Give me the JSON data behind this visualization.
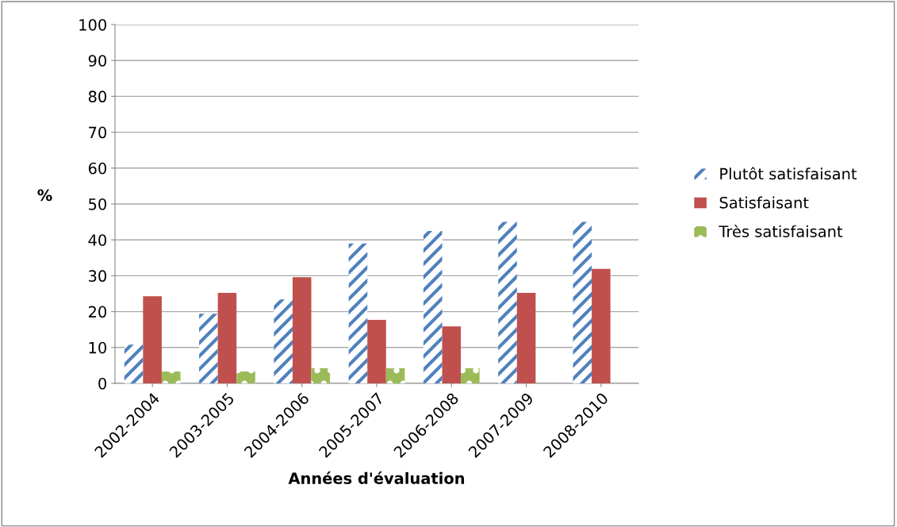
{
  "chart_data": {
    "type": "bar",
    "xlabel": "Années d'évaluation",
    "ylabel": "%",
    "categories": [
      "2002-2004",
      "2003-2005",
      "2004-2006",
      "2005-2007",
      "2006-2008",
      "2007-2009",
      "2008-2010"
    ],
    "series": [
      {
        "name": "Plutôt satisfaisant",
        "color": "#4f81bd",
        "values": [
          10.8,
          19.4,
          23.4,
          39,
          42.5,
          45,
          45
        ]
      },
      {
        "name": "Satisfaisant",
        "color": "#c0504d",
        "values": [
          24.3,
          25.2,
          29.6,
          17.7,
          15.9,
          25.2,
          31.9
        ]
      },
      {
        "name": "Très satisfaisant",
        "color": "#9bbb59",
        "values": [
          3.3,
          3.3,
          4.2,
          4.2,
          4.2,
          null,
          null
        ]
      }
    ],
    "ylim": [
      0,
      100
    ],
    "yticks": [
      0,
      10,
      20,
      30,
      40,
      50,
      60,
      70,
      80,
      90,
      100
    ],
    "grid": "y",
    "legend": "right"
  }
}
